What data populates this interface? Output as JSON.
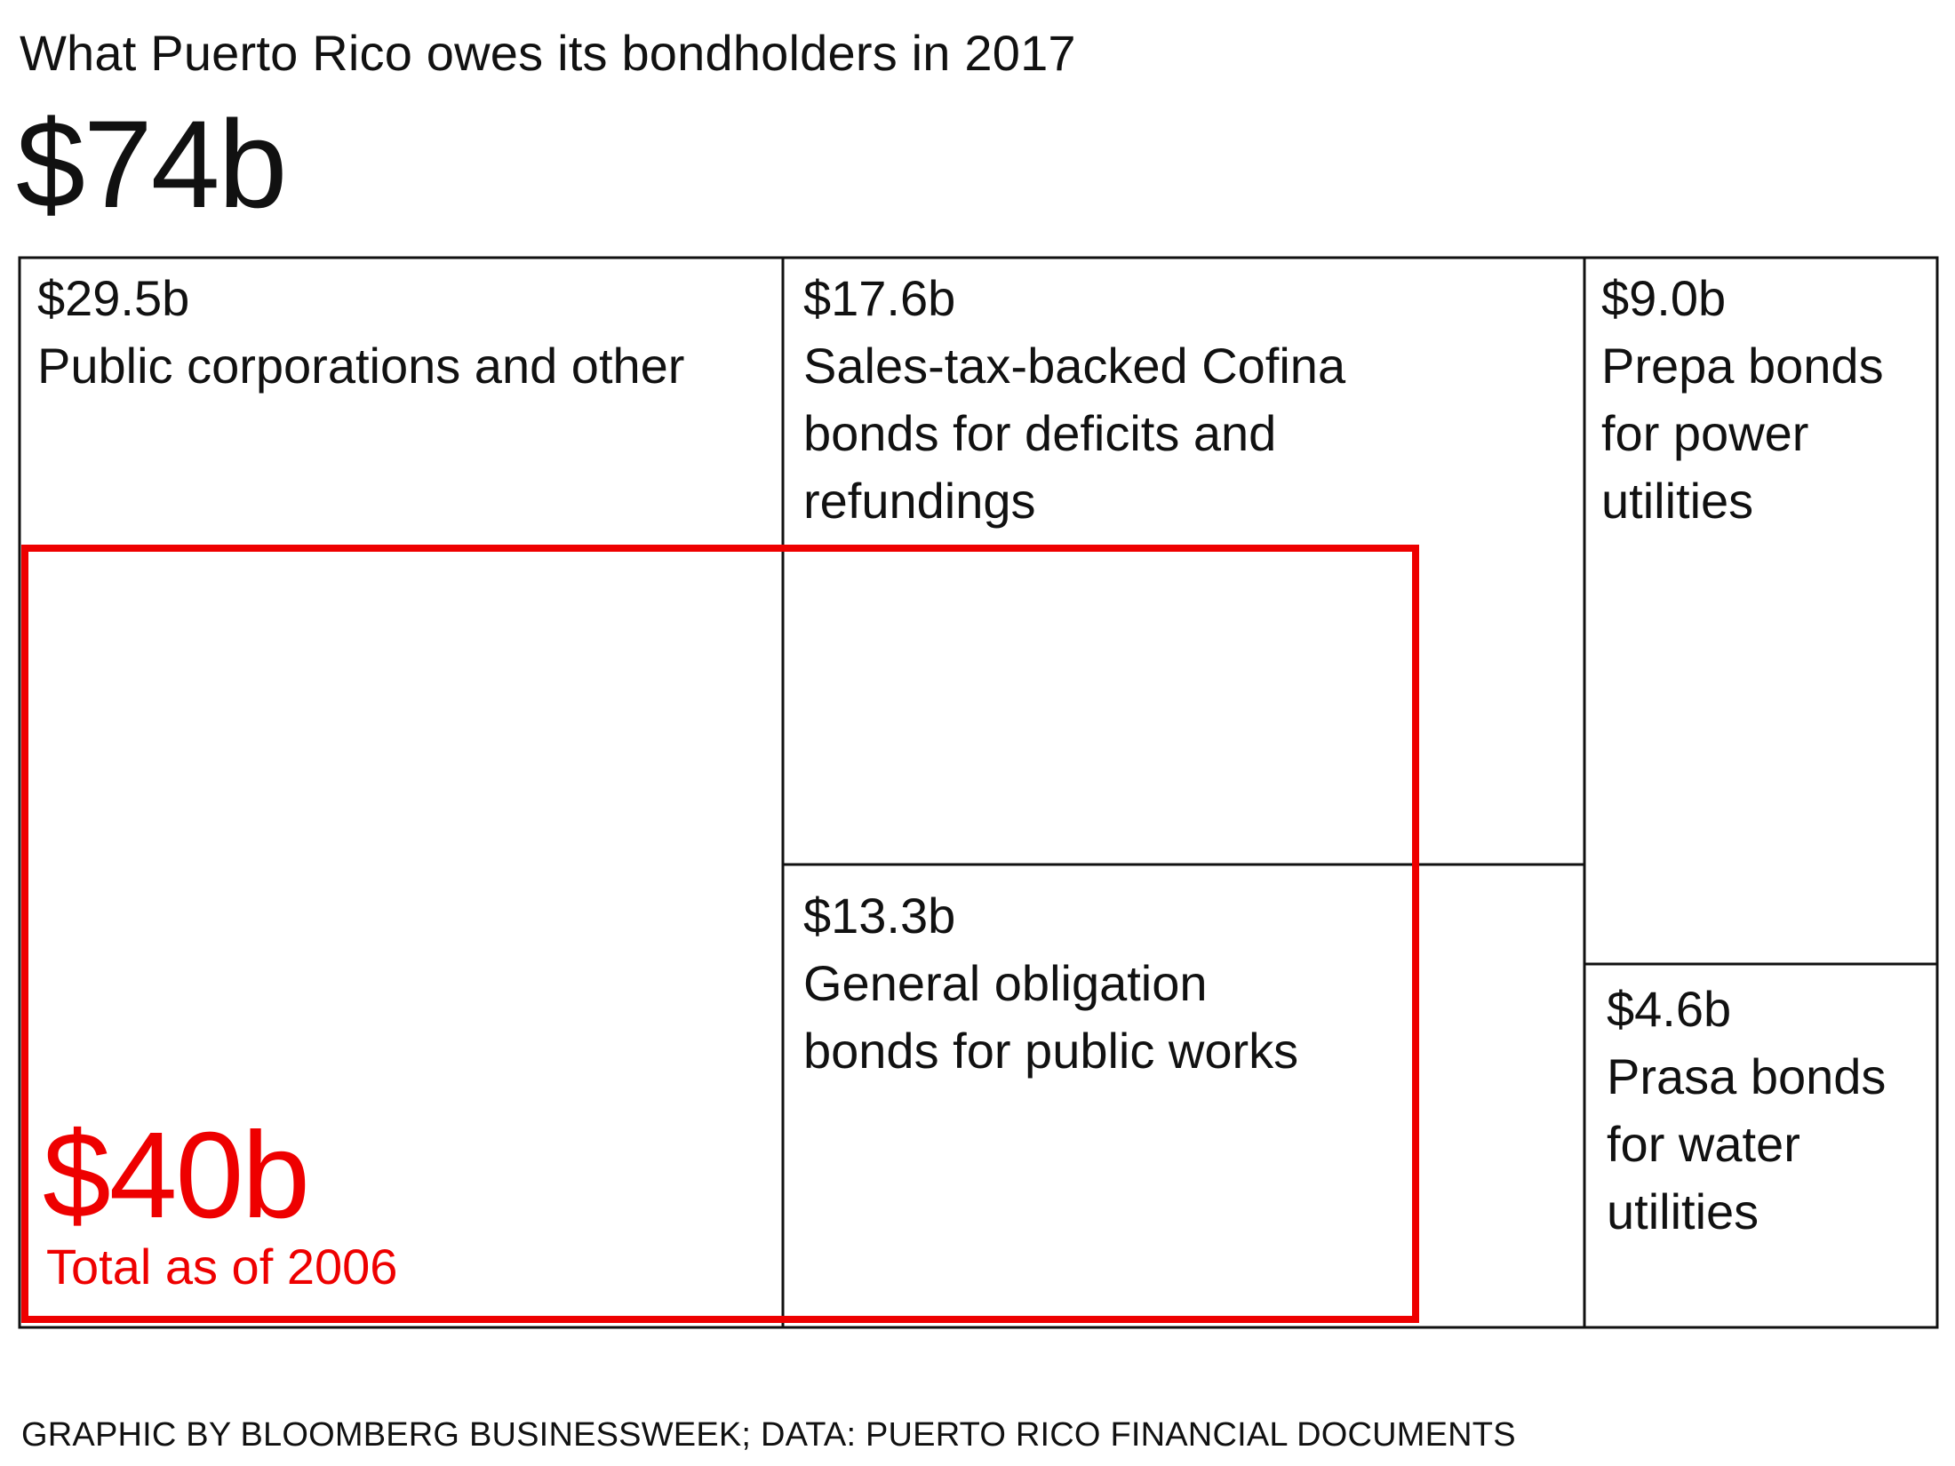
{
  "title": "What Puerto Rico owes its bondholders in 2017",
  "total": "$74b",
  "footer": "GRAPHIC BY BLOOMBERG BUSINESSWEEK; DATA: PUERTO RICO FINANCIAL DOCUMENTS",
  "colors": {
    "line": "#111111",
    "highlight": "#ee0000"
  },
  "chart_data": {
    "type": "treemap",
    "unit": "$ billion",
    "total_label": "$74b",
    "segments": [
      {
        "value": 29.5,
        "value_label": "$29.5b",
        "label_lines": [
          "Public corporations and other"
        ]
      },
      {
        "value": 17.6,
        "value_label": "$17.6b",
        "label_lines": [
          "Sales-tax-backed Cofina",
          "bonds for deficits and",
          "refundings"
        ]
      },
      {
        "value": 9.0,
        "value_label": "$9.0b",
        "label_lines": [
          "Prepa bonds",
          "for power",
          "utilities"
        ]
      },
      {
        "value": 13.3,
        "value_label": "$13.3b",
        "label_lines": [
          "General obligation",
          "bonds for public works"
        ]
      },
      {
        "value": 4.6,
        "value_label": "$4.6b",
        "label_lines": [
          "Prasa bonds",
          "for water",
          "utilities"
        ]
      }
    ],
    "overlay": {
      "value": 40,
      "value_label": "$40b",
      "label": "Total as of 2006"
    }
  }
}
